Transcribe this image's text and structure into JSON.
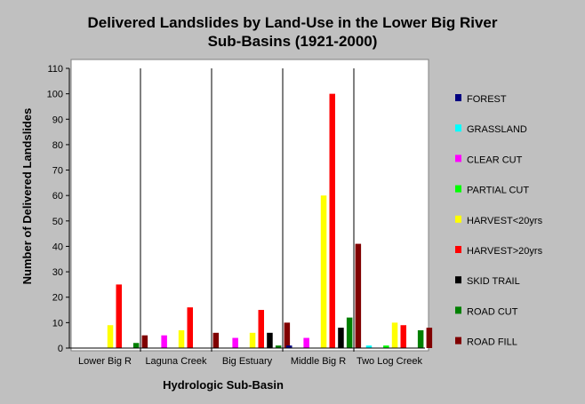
{
  "chart_data": {
    "type": "bar",
    "title_line1": "Delivered Landslides by Land-Use in the Lower Big River",
    "title_line2": "Sub-Basins (1921-2000)",
    "xlabel": "Hydrologic Sub-Basin",
    "ylabel": "Number of Delivered Landslides",
    "ylim": [
      0,
      110
    ],
    "yticks": [
      0,
      10,
      20,
      30,
      40,
      50,
      60,
      70,
      80,
      90,
      100,
      110
    ],
    "grid": "vertical category separators",
    "legend_position": "right",
    "categories": [
      "Lower Big R",
      "Laguna Creek",
      "Big Estuary",
      "Middle Big R",
      "Two Log Creek"
    ],
    "series": [
      {
        "name": "FOREST",
        "color": "#000080",
        "values": [
          0,
          0,
          0,
          1,
          0
        ]
      },
      {
        "name": "GRASSLAND",
        "color": "#00ffff",
        "values": [
          0,
          0,
          0,
          0,
          1
        ]
      },
      {
        "name": "CLEAR CUT",
        "color": "#ff00ff",
        "values": [
          0,
          5,
          4,
          4,
          0
        ]
      },
      {
        "name": "PARTIAL CUT",
        "color": "#00ff00",
        "values": [
          0,
          0,
          0,
          0,
          1
        ]
      },
      {
        "name": "HARVEST<20yrs",
        "color": "#ffff00",
        "values": [
          9,
          7,
          6,
          60,
          10
        ]
      },
      {
        "name": "HARVEST>20yrs",
        "color": "#ff0000",
        "values": [
          25,
          16,
          15,
          100,
          9
        ]
      },
      {
        "name": "SKID TRAIL",
        "color": "#000000",
        "values": [
          0,
          0,
          6,
          8,
          0
        ]
      },
      {
        "name": "ROAD CUT",
        "color": "#008000",
        "values": [
          2,
          0,
          1,
          12,
          7
        ]
      },
      {
        "name": "ROAD FILL",
        "color": "#800000",
        "values": [
          5,
          6,
          10,
          41,
          8
        ]
      }
    ]
  }
}
